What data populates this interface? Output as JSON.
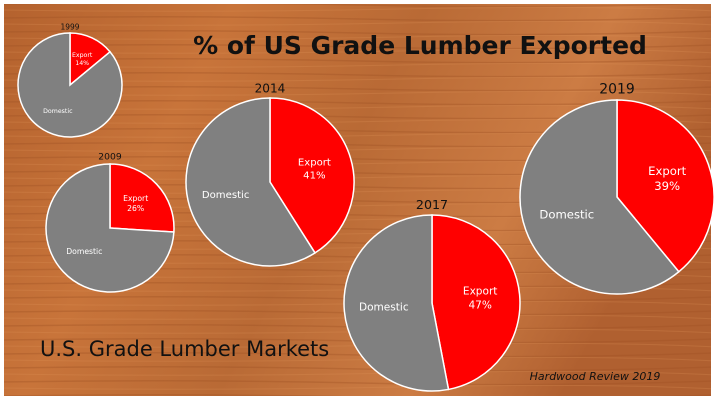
{
  "title": "% of US Grade Lumber Exported",
  "subtitle": "U.S. Grade Lumber Markets",
  "source": "Hardwood Review 2019",
  "chart_data": [
    {
      "type": "pie",
      "title": "1999",
      "categories": [
        "Domestic",
        "Export"
      ],
      "values": [
        86,
        14
      ],
      "value_labels": [
        null,
        "14%"
      ],
      "colors": [
        "#808080",
        "#ff0000"
      ]
    },
    {
      "type": "pie",
      "title": "2009",
      "categories": [
        "Domestic",
        "Export"
      ],
      "values": [
        74,
        26
      ],
      "value_labels": [
        null,
        "26%"
      ],
      "colors": [
        "#808080",
        "#ff0000"
      ]
    },
    {
      "type": "pie",
      "title": "2014",
      "categories": [
        "Domestic",
        "Export"
      ],
      "values": [
        59,
        41
      ],
      "value_labels": [
        null,
        "41%"
      ],
      "colors": [
        "#808080",
        "#ff0000"
      ]
    },
    {
      "type": "pie",
      "title": "2017",
      "categories": [
        "Domestic",
        "Export"
      ],
      "values": [
        53,
        47
      ],
      "value_labels": [
        null,
        "47%"
      ],
      "colors": [
        "#808080",
        "#ff0000"
      ]
    },
    {
      "type": "pie",
      "title": "2019",
      "categories": [
        "Domestic",
        "Export"
      ],
      "values": [
        61,
        39
      ],
      "value_labels": [
        null,
        "39%"
      ],
      "colors": [
        "#808080",
        "#ff0000"
      ]
    }
  ]
}
